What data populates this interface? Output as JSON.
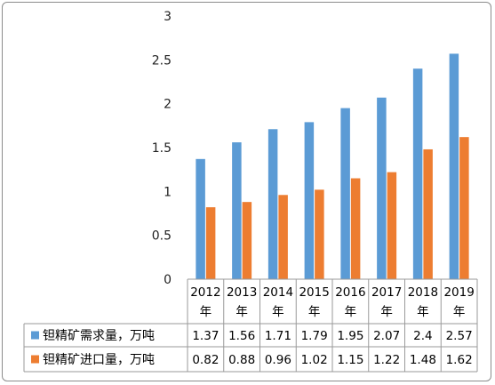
{
  "chart_data": {
    "type": "bar",
    "categories": [
      [
        "2012",
        "年"
      ],
      [
        "2013",
        "年"
      ],
      [
        "2014",
        "年"
      ],
      [
        "2015",
        "年"
      ],
      [
        "2016",
        "年"
      ],
      [
        "2017",
        "年"
      ],
      [
        "2018",
        "年"
      ],
      [
        "2019",
        "年"
      ]
    ],
    "series": [
      {
        "name": "钽精矿需求量，万吨",
        "color": "#5b9bd5",
        "values": [
          1.37,
          1.56,
          1.71,
          1.79,
          1.95,
          2.07,
          2.4,
          2.57
        ],
        "labels": [
          "1.37",
          "1.56",
          "1.71",
          "1.79",
          "1.95",
          "2.07",
          "2.4",
          "2.57"
        ]
      },
      {
        "name": "钽精矿进口量，万吨",
        "color": "#ed7d31",
        "values": [
          0.82,
          0.88,
          0.96,
          1.02,
          1.15,
          1.22,
          1.48,
          1.62
        ],
        "labels": [
          "0.82",
          "0.88",
          "0.96",
          "1.02",
          "1.15",
          "1.22",
          "1.48",
          "1.62"
        ]
      }
    ],
    "yticks": [
      "0",
      "0.5",
      "1",
      "1.5",
      "2",
      "2.5",
      "3"
    ],
    "ylim": [
      0,
      3
    ],
    "grid": false,
    "legend": "data-table"
  }
}
